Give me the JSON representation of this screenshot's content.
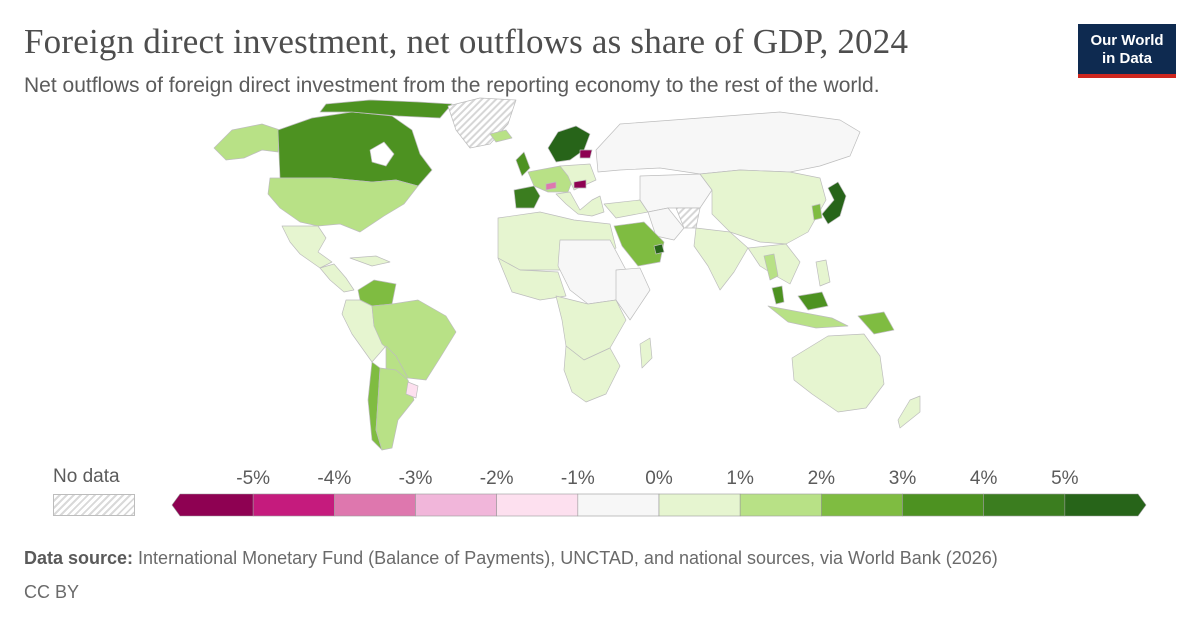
{
  "header": {
    "title": "Foreign direct investment, net outflows as share of GDP, 2024",
    "subtitle": "Net outflows of foreign direct investment from the reporting economy to the rest of the world."
  },
  "logo": {
    "line1": "Our World",
    "line2": "in Data",
    "bg_color": "#0e2a50",
    "accent_color": "#ce261e"
  },
  "legend": {
    "no_data_label": "No data",
    "tick_labels": [
      "-5%",
      "-4%",
      "-3%",
      "-2%",
      "-1%",
      "0%",
      "1%",
      "2%",
      "3%",
      "4%",
      "5%"
    ],
    "bins": [
      {
        "from": null,
        "to": -5,
        "color": "#8e0152"
      },
      {
        "from": -5,
        "to": -4,
        "color": "#c51b7d"
      },
      {
        "from": -4,
        "to": -3,
        "color": "#de77ae"
      },
      {
        "from": -3,
        "to": -2,
        "color": "#f1b6da"
      },
      {
        "from": -2,
        "to": -1,
        "color": "#fde0ef"
      },
      {
        "from": -1,
        "to": 0,
        "color": "#f7f7f7"
      },
      {
        "from": 0,
        "to": 1,
        "color": "#e6f5d0"
      },
      {
        "from": 1,
        "to": 2,
        "color": "#b8e186"
      },
      {
        "from": 2,
        "to": 3,
        "color": "#7fbc41"
      },
      {
        "from": 3,
        "to": 4,
        "color": "#4d9221"
      },
      {
        "from": 4,
        "to": 5,
        "color": "#3b7d1f"
      },
      {
        "from": 5,
        "to": null,
        "color": "#276419"
      }
    ]
  },
  "footer": {
    "source_label": "Data source:",
    "source_text": " International Monetary Fund (Balance of Payments), UNCTAD, and national sources, via World Bank (2026)",
    "license": "CC BY"
  }
}
